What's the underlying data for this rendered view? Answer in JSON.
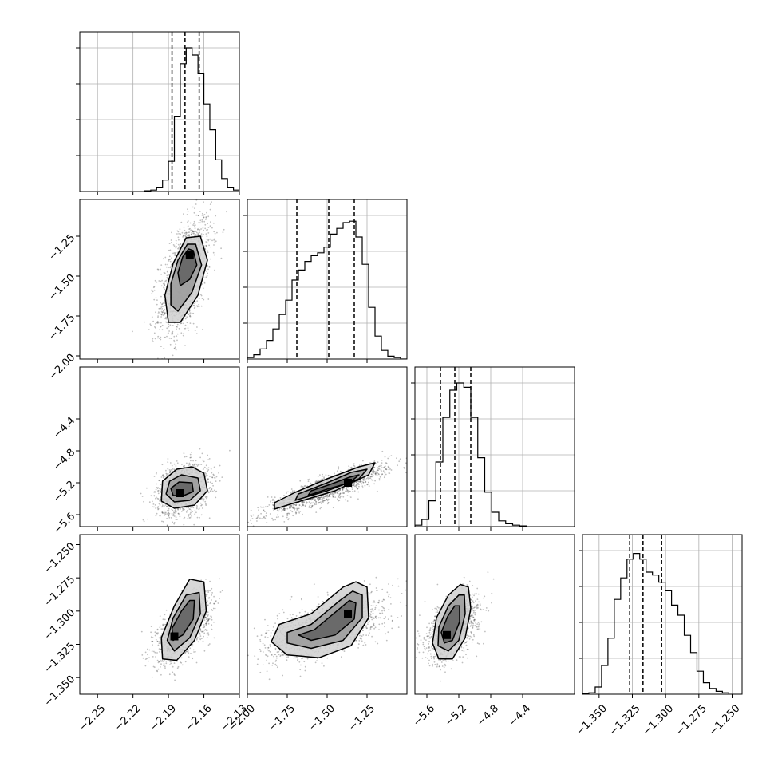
{
  "chart_data": [
    {
      "type": "histogram",
      "panel": "1-1",
      "x_param": 0,
      "xlim": [
        -2.265,
        -2.13
      ],
      "quantiles": [
        -2.187,
        -2.176,
        -2.164
      ],
      "bins_x": [
        -2.21,
        -2.13
      ],
      "bins_y": [
        0.005,
        0.01,
        0.03,
        0.08,
        0.21,
        0.52,
        0.89,
        1.0,
        0.95,
        0.82,
        0.61,
        0.43,
        0.22,
        0.09,
        0.03,
        0.01
      ],
      "grid": true,
      "yticks_labels": false
    },
    {
      "type": "histogram",
      "panel": "2-2",
      "x_param": 1,
      "xlim": [
        -2.0,
        -1.0
      ],
      "quantiles": [
        -1.69,
        -1.49,
        -1.33
      ],
      "bins_x": [
        -2.0,
        -1.0
      ],
      "bins_y": [
        0.01,
        0.03,
        0.07,
        0.13,
        0.21,
        0.31,
        0.41,
        0.55,
        0.62,
        0.68,
        0.72,
        0.74,
        0.78,
        0.87,
        0.91,
        0.95,
        0.96,
        0.85,
        0.66,
        0.36,
        0.16,
        0.06,
        0.02,
        0.01,
        0.0
      ],
      "grid": true,
      "yticks_labels": false
    },
    {
      "type": "histogram",
      "panel": "3-3",
      "x_param": 2,
      "xlim": [
        -5.75,
        -3.75
      ],
      "quantiles": [
        -5.43,
        -5.25,
        -5.05
      ],
      "bins_x": [
        -5.75,
        -4.35
      ],
      "bins_y": [
        0.01,
        0.05,
        0.18,
        0.45,
        0.76,
        0.95,
        1.0,
        0.97,
        0.76,
        0.48,
        0.24,
        0.1,
        0.04,
        0.02,
        0.01,
        0.005
      ],
      "grid": true,
      "yticks_labels": false
    },
    {
      "type": "histogram",
      "panel": "4-4",
      "x_param": 3,
      "xlim": [
        -1.3625,
        -1.2425
      ],
      "quantiles": [
        -1.327,
        -1.317,
        -1.303
      ],
      "bins_x": [
        -1.3625,
        -1.2525
      ],
      "bins_y": [
        0.005,
        0.01,
        0.05,
        0.2,
        0.39,
        0.66,
        0.81,
        0.94,
        0.98,
        0.94,
        0.85,
        0.83,
        0.78,
        0.72,
        0.62,
        0.55,
        0.41,
        0.29,
        0.16,
        0.08,
        0.04,
        0.02,
        0.01
      ],
      "grid": true,
      "yticks_labels": false
    },
    {
      "type": "scatter-density",
      "panel": "2-1",
      "x_param": 0,
      "y_param": 1,
      "xlim": [
        -2.265,
        -2.13
      ],
      "ylim": [
        -2.02,
        -1.02
      ],
      "center": [
        -2.176,
        -1.5
      ],
      "sigma": [
        0.011,
        0.19
      ],
      "corr": 0.55,
      "density_peak": [
        -2.172,
        -1.37
      ],
      "contours": [
        [
          [
            -2.163,
            -1.25
          ],
          [
            -2.157,
            -1.4
          ],
          [
            -2.165,
            -1.62
          ],
          [
            -2.18,
            -1.79
          ],
          [
            -2.19,
            -1.79
          ],
          [
            -2.193,
            -1.62
          ],
          [
            -2.186,
            -1.42
          ],
          [
            -2.175,
            -1.26
          ]
        ],
        [
          [
            -2.167,
            -1.3
          ],
          [
            -2.162,
            -1.43
          ],
          [
            -2.17,
            -1.6
          ],
          [
            -2.182,
            -1.72
          ],
          [
            -2.188,
            -1.68
          ],
          [
            -2.188,
            -1.55
          ],
          [
            -2.182,
            -1.4
          ],
          [
            -2.174,
            -1.3
          ]
        ],
        [
          [
            -2.169,
            -1.34
          ],
          [
            -2.166,
            -1.43
          ],
          [
            -2.172,
            -1.52
          ],
          [
            -2.18,
            -1.56
          ],
          [
            -2.182,
            -1.48
          ],
          [
            -2.178,
            -1.38
          ],
          [
            -2.173,
            -1.33
          ]
        ]
      ]
    },
    {
      "type": "scatter-density",
      "panel": "3-1",
      "x_param": 0,
      "y_param": 2,
      "xlim": [
        -2.265,
        -2.13
      ],
      "ylim": [
        -5.75,
        -3.75
      ],
      "center": [
        -2.178,
        -5.28
      ],
      "sigma": [
        0.011,
        0.16
      ],
      "corr": 0.25,
      "density_peak": [
        -2.18,
        -5.33
      ],
      "contours": [
        [
          [
            -2.16,
            -5.08
          ],
          [
            -2.157,
            -5.3
          ],
          [
            -2.168,
            -5.48
          ],
          [
            -2.185,
            -5.52
          ],
          [
            -2.196,
            -5.43
          ],
          [
            -2.195,
            -5.18
          ],
          [
            -2.183,
            -5.03
          ],
          [
            -2.17,
            -5.0
          ]
        ],
        [
          [
            -2.165,
            -5.14
          ],
          [
            -2.163,
            -5.3
          ],
          [
            -2.172,
            -5.42
          ],
          [
            -2.185,
            -5.44
          ],
          [
            -2.192,
            -5.34
          ],
          [
            -2.189,
            -5.18
          ],
          [
            -2.179,
            -5.1
          ]
        ],
        [
          [
            -2.17,
            -5.2
          ],
          [
            -2.169,
            -5.31
          ],
          [
            -2.177,
            -5.36
          ],
          [
            -2.186,
            -5.36
          ],
          [
            -2.188,
            -5.27
          ],
          [
            -2.181,
            -5.19
          ]
        ]
      ]
    },
    {
      "type": "scatter-density",
      "panel": "3-2",
      "x_param": 1,
      "y_param": 2,
      "xlim": [
        -2.0,
        -1.0
      ],
      "ylim": [
        -5.75,
        -3.75
      ],
      "center": [
        -1.5,
        -5.28
      ],
      "sigma": [
        0.19,
        0.16
      ],
      "corr": 0.88,
      "density_peak": [
        -1.37,
        -5.2
      ],
      "contours": [
        [
          [
            -1.2,
            -4.95
          ],
          [
            -1.24,
            -5.1
          ],
          [
            -1.45,
            -5.3
          ],
          [
            -1.7,
            -5.45
          ],
          [
            -1.83,
            -5.53
          ],
          [
            -1.83,
            -5.45
          ],
          [
            -1.7,
            -5.32
          ],
          [
            -1.5,
            -5.15
          ],
          [
            -1.3,
            -5.0
          ]
        ],
        [
          [
            -1.25,
            -5.03
          ],
          [
            -1.3,
            -5.15
          ],
          [
            -1.5,
            -5.3
          ],
          [
            -1.7,
            -5.42
          ],
          [
            -1.68,
            -5.34
          ],
          [
            -1.5,
            -5.2
          ],
          [
            -1.35,
            -5.07
          ]
        ],
        [
          [
            -1.3,
            -5.1
          ],
          [
            -1.36,
            -5.2
          ],
          [
            -1.5,
            -5.28
          ],
          [
            -1.62,
            -5.36
          ],
          [
            -1.6,
            -5.3
          ],
          [
            -1.48,
            -5.22
          ],
          [
            -1.36,
            -5.13
          ]
        ]
      ]
    },
    {
      "type": "scatter-density",
      "panel": "4-1",
      "x_param": 0,
      "y_param": 3,
      "xlim": [
        -2.265,
        -2.13
      ],
      "ylim": [
        -1.3625,
        -1.2425
      ],
      "center": [
        -2.177,
        -1.313
      ],
      "sigma": [
        0.011,
        0.012
      ],
      "corr": 0.6,
      "density_peak": [
        -2.185,
        -1.319
      ],
      "contours": [
        [
          [
            -2.16,
            -1.278
          ],
          [
            -2.158,
            -1.3
          ],
          [
            -2.168,
            -1.322
          ],
          [
            -2.183,
            -1.337
          ],
          [
            -2.195,
            -1.336
          ],
          [
            -2.196,
            -1.32
          ],
          [
            -2.185,
            -1.296
          ],
          [
            -2.172,
            -1.276
          ]
        ],
        [
          [
            -2.164,
            -1.286
          ],
          [
            -2.163,
            -1.302
          ],
          [
            -2.172,
            -1.32
          ],
          [
            -2.185,
            -1.33
          ],
          [
            -2.191,
            -1.322
          ],
          [
            -2.186,
            -1.305
          ],
          [
            -2.175,
            -1.288
          ]
        ],
        [
          [
            -2.168,
            -1.292
          ],
          [
            -2.169,
            -1.306
          ],
          [
            -2.178,
            -1.318
          ],
          [
            -2.186,
            -1.322
          ],
          [
            -2.187,
            -1.313
          ],
          [
            -2.179,
            -1.3
          ],
          [
            -2.172,
            -1.292
          ]
        ]
      ]
    },
    {
      "type": "scatter-density",
      "panel": "4-2",
      "x_param": 1,
      "y_param": 3,
      "xlim": [
        -2.0,
        -1.0
      ],
      "ylim": [
        -1.3625,
        -1.2425
      ],
      "center": [
        -1.5,
        -1.313
      ],
      "sigma": [
        0.19,
        0.012
      ],
      "corr": 0.6,
      "density_peak": [
        -1.37,
        -1.302
      ],
      "contours": [
        [
          [
            -1.25,
            -1.282
          ],
          [
            -1.24,
            -1.305
          ],
          [
            -1.35,
            -1.326
          ],
          [
            -1.55,
            -1.335
          ],
          [
            -1.75,
            -1.333
          ],
          [
            -1.85,
            -1.323
          ],
          [
            -1.8,
            -1.31
          ],
          [
            -1.6,
            -1.302
          ],
          [
            -1.4,
            -1.282
          ],
          [
            -1.32,
            -1.278
          ]
        ],
        [
          [
            -1.28,
            -1.288
          ],
          [
            -1.28,
            -1.305
          ],
          [
            -1.4,
            -1.322
          ],
          [
            -1.6,
            -1.328
          ],
          [
            -1.75,
            -1.324
          ],
          [
            -1.75,
            -1.316
          ],
          [
            -1.6,
            -1.31
          ],
          [
            -1.42,
            -1.292
          ],
          [
            -1.34,
            -1.285
          ]
        ],
        [
          [
            -1.32,
            -1.294
          ],
          [
            -1.33,
            -1.306
          ],
          [
            -1.45,
            -1.318
          ],
          [
            -1.6,
            -1.322
          ],
          [
            -1.68,
            -1.318
          ],
          [
            -1.58,
            -1.314
          ],
          [
            -1.44,
            -1.3
          ],
          [
            -1.36,
            -1.292
          ]
        ]
      ]
    },
    {
      "type": "scatter-density",
      "panel": "4-3",
      "x_param": 2,
      "y_param": 3,
      "xlim": [
        -5.75,
        -3.75
      ],
      "ylim": [
        -1.3625,
        -1.2425
      ],
      "center": [
        -5.28,
        -1.313
      ],
      "sigma": [
        0.16,
        0.012
      ],
      "corr": 0.5,
      "density_peak": [
        -5.35,
        -1.318
      ],
      "contours": [
        [
          [
            -5.08,
            -1.282
          ],
          [
            -5.05,
            -1.298
          ],
          [
            -5.12,
            -1.32
          ],
          [
            -5.28,
            -1.336
          ],
          [
            -5.45,
            -1.336
          ],
          [
            -5.53,
            -1.324
          ],
          [
            -5.48,
            -1.305
          ],
          [
            -5.33,
            -1.288
          ],
          [
            -5.18,
            -1.28
          ]
        ],
        [
          [
            -5.13,
            -1.288
          ],
          [
            -5.12,
            -1.302
          ],
          [
            -5.2,
            -1.322
          ],
          [
            -5.33,
            -1.33
          ],
          [
            -5.46,
            -1.326
          ],
          [
            -5.45,
            -1.312
          ],
          [
            -5.33,
            -1.296
          ],
          [
            -5.2,
            -1.288
          ]
        ],
        [
          [
            -5.19,
            -1.296
          ],
          [
            -5.19,
            -1.308
          ],
          [
            -5.28,
            -1.322
          ],
          [
            -5.38,
            -1.324
          ],
          [
            -5.42,
            -1.316
          ],
          [
            -5.34,
            -1.304
          ],
          [
            -5.25,
            -1.296
          ]
        ]
      ]
    }
  ],
  "axes": {
    "p0_ticks": [
      {
        "v": -2.25,
        "t": "−2.25"
      },
      {
        "v": -2.22,
        "t": "−2.22"
      },
      {
        "v": -2.19,
        "t": "−2.19"
      },
      {
        "v": -2.16,
        "t": "−2.16"
      },
      {
        "v": -2.13,
        "t": "−2.13"
      }
    ],
    "p1_ticks": [
      {
        "v": -2.0,
        "t": "−2.00"
      },
      {
        "v": -1.75,
        "t": "−1.75"
      },
      {
        "v": -1.5,
        "t": "−1.50"
      },
      {
        "v": -1.25,
        "t": "−1.25"
      }
    ],
    "p2_ticks": [
      {
        "v": -5.6,
        "t": "−5.6"
      },
      {
        "v": -5.2,
        "t": "−5.2"
      },
      {
        "v": -4.8,
        "t": "−4.8"
      },
      {
        "v": -4.4,
        "t": "−4.4"
      }
    ],
    "p3_ticks": [
      {
        "v": -1.35,
        "t": "−1.350"
      },
      {
        "v": -1.325,
        "t": "−1.325"
      },
      {
        "v": -1.3,
        "t": "−1.300"
      },
      {
        "v": -1.275,
        "t": "−1.275"
      },
      {
        "v": -1.25,
        "t": "−1.250"
      }
    ],
    "p1_ticks_y": [
      {
        "v": -2.0,
        "t": "−2.00"
      },
      {
        "v": -1.75,
        "t": "−1.75"
      },
      {
        "v": -1.5,
        "t": "−1.50"
      },
      {
        "v": -1.25,
        "t": "−1.25"
      }
    ],
    "p2_ticks_y": [
      {
        "v": -5.6,
        "t": "−5.6"
      },
      {
        "v": -5.2,
        "t": "−5.2"
      },
      {
        "v": -4.8,
        "t": "−4.8"
      },
      {
        "v": -4.4,
        "t": "−4.4"
      }
    ],
    "p3_ticks_y": [
      {
        "v": -1.35,
        "t": "−1.350"
      },
      {
        "v": -1.325,
        "t": "−1.325"
      },
      {
        "v": -1.3,
        "t": "−1.300"
      },
      {
        "v": -1.275,
        "t": "−1.275"
      },
      {
        "v": -1.25,
        "t": "−1.250"
      }
    ]
  }
}
